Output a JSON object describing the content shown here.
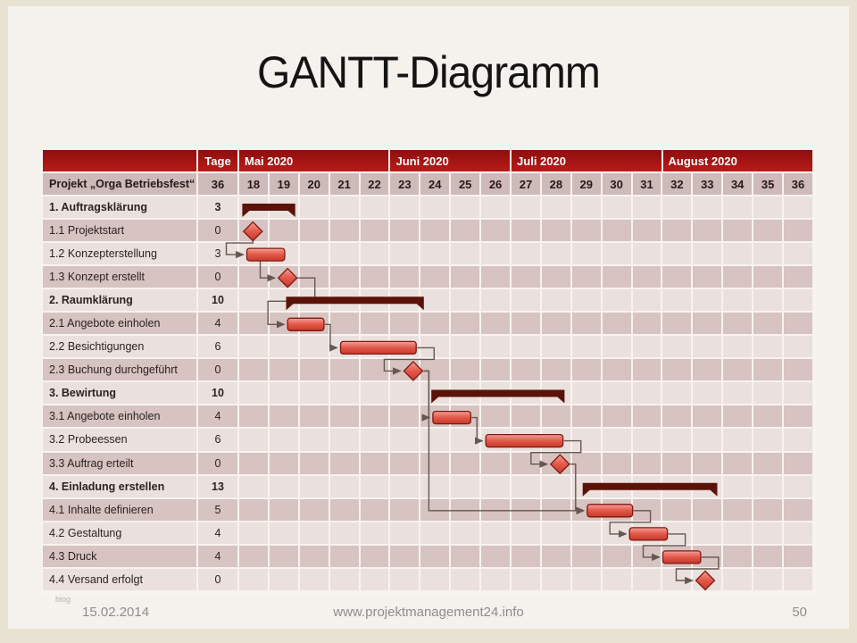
{
  "title": "GANTT-Diagramm",
  "footer": {
    "date": "15.02.2014",
    "url": "www.projektmanagement24.info",
    "page": "50",
    "watermark": "blog"
  },
  "colors": {
    "header_red_top": "#8d0f0f",
    "header_red_bottom": "#ba1a17",
    "week_row": "#cebab8",
    "row_light": "#eae0dd",
    "row_dark": "#d7c3c1",
    "grid_line": "#f7f3f0",
    "bar_fill": "#e25849",
    "bar_border": "#7e180f",
    "summary_bar": "#5a1308",
    "connector": "#665750",
    "slide_bg": "#f5f2ee",
    "frame_bg": "#e8e2d3",
    "table_text": "#2b2222"
  },
  "table": {
    "tage_header": "Tage",
    "project_label": "Projekt „Orga Betriebsfest“",
    "project_tage": "36",
    "months": [
      {
        "label": "Mai 2020",
        "weeks": [
          "18",
          "19",
          "20",
          "21",
          "22"
        ]
      },
      {
        "label": "Juni 2020",
        "weeks": [
          "23",
          "24",
          "25",
          "26"
        ]
      },
      {
        "label": "Juli 2020",
        "weeks": [
          "27",
          "28",
          "29",
          "30",
          "31"
        ]
      },
      {
        "label": "August 2020",
        "weeks": [
          "32",
          "33",
          "34",
          "35",
          "36"
        ]
      }
    ]
  },
  "chart_data": {
    "type": "bar",
    "subtype": "gantt",
    "title": "GANTT-Diagramm",
    "x_unit": "Kalenderwoche 2020",
    "x_range": [
      18,
      37
    ],
    "tasks": [
      {
        "id": "1",
        "name": "1. Auftragsklärung",
        "tage": "3",
        "kind": "summary",
        "start": 18.1,
        "end": 19.85
      },
      {
        "id": "1.1",
        "name": "1.1 Projektstart",
        "tage": "0",
        "kind": "milestone",
        "at": 18.45
      },
      {
        "id": "1.2",
        "name": "1.2 Konzepterstellung",
        "tage": "3",
        "kind": "bar",
        "start": 18.25,
        "end": 19.5
      },
      {
        "id": "1.3",
        "name": "1.3 Konzept erstellt",
        "tage": "0",
        "kind": "milestone",
        "at": 19.6
      },
      {
        "id": "2",
        "name": "2. Raumklärung",
        "tage": "10",
        "kind": "summary",
        "start": 19.55,
        "end": 24.1
      },
      {
        "id": "2.1",
        "name": "2.1 Angebote  einholen",
        "tage": "4",
        "kind": "bar",
        "start": 19.6,
        "end": 20.8
      },
      {
        "id": "2.2",
        "name": "2.2 Besichtigungen",
        "tage": "6",
        "kind": "bar",
        "start": 21.35,
        "end": 23.85
      },
      {
        "id": "2.3",
        "name": "2.3 Buchung durchgeführt",
        "tage": "0",
        "kind": "milestone",
        "at": 23.75
      },
      {
        "id": "3",
        "name": "3. Bewirtung",
        "tage": "10",
        "kind": "summary",
        "start": 24.35,
        "end": 28.75
      },
      {
        "id": "3.1",
        "name": "3.1  Angebote  einholen",
        "tage": "4",
        "kind": "bar",
        "start": 24.4,
        "end": 25.65
      },
      {
        "id": "3.2",
        "name": "3.2 Probeessen",
        "tage": "6",
        "kind": "bar",
        "start": 26.15,
        "end": 28.7
      },
      {
        "id": "3.3",
        "name": "3.3 Auftrag erteilt",
        "tage": "0",
        "kind": "milestone",
        "at": 28.6
      },
      {
        "id": "4",
        "name": "4. Einladung  erstellen",
        "tage": "13",
        "kind": "summary",
        "start": 29.35,
        "end": 33.8
      },
      {
        "id": "4.1",
        "name": "4.1 Inhalte definieren",
        "tage": "5",
        "kind": "bar",
        "start": 29.5,
        "end": 31.0
      },
      {
        "id": "4.2",
        "name": "4.2 Gestaltung",
        "tage": "4",
        "kind": "bar",
        "start": 30.9,
        "end": 32.15
      },
      {
        "id": "4.3",
        "name": "4.3 Druck",
        "tage": "4",
        "kind": "bar",
        "start": 32.0,
        "end": 33.25
      },
      {
        "id": "4.4",
        "name": "4.4 Versand erfolgt",
        "tage": "0",
        "kind": "milestone",
        "at": 33.4
      }
    ],
    "links": [
      {
        "from": "1.1",
        "to": "1.2",
        "style": "dropleft"
      },
      {
        "from": "1.2",
        "to": "1.3",
        "style": "drop"
      },
      {
        "from": "1.3",
        "to": "2.1",
        "style": "s"
      },
      {
        "from": "2.1",
        "to": "2.2",
        "style": "step"
      },
      {
        "from": "2.2",
        "to": "2.3",
        "style": "s"
      },
      {
        "from": "2.3",
        "to": "3.1",
        "style": "step"
      },
      {
        "from": "2.3",
        "to": "4.1",
        "style": "step"
      },
      {
        "from": "3.1",
        "to": "3.2",
        "style": "step"
      },
      {
        "from": "3.2",
        "to": "3.3",
        "style": "s"
      },
      {
        "from": "3.3",
        "to": "4.1",
        "style": "step"
      },
      {
        "from": "4.1",
        "to": "4.2",
        "style": "s"
      },
      {
        "from": "4.2",
        "to": "4.3",
        "style": "s"
      },
      {
        "from": "4.3",
        "to": "4.4",
        "style": "s"
      }
    ]
  }
}
